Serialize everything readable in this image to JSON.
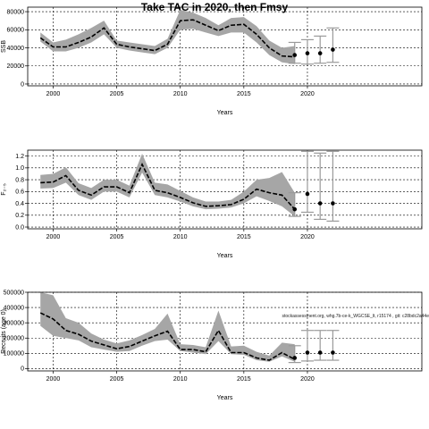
{
  "page": {
    "title": "Take TAC in 2020, then Fmsy"
  },
  "chart_data": [
    {
      "type": "line",
      "ylabel": "SSB",
      "xlabel": "Years",
      "xlim": [
        1998,
        2029
      ],
      "ylim": [
        -2000,
        85000
      ],
      "x_ticks": [
        2000,
        2005,
        2010,
        2015,
        2020
      ],
      "y_ticks": [
        0,
        20000,
        40000,
        60000,
        80000
      ],
      "y_tick_labels": [
        "0",
        "20000",
        "40000",
        "60000",
        "80000"
      ],
      "grid": true,
      "series": [
        {
          "x": [
            1999,
            2000,
            2001,
            2002,
            2003,
            2004,
            2005,
            2006,
            2007,
            2008,
            2009,
            2010,
            2011,
            2012,
            2013,
            2014,
            2015,
            2016,
            2017,
            2018,
            2019
          ],
          "values": [
            51000,
            41000,
            41000,
            46000,
            52000,
            62000,
            44000,
            41000,
            39000,
            37000,
            44000,
            70000,
            71000,
            65000,
            59000,
            65000,
            66000,
            55000,
            40000,
            31000,
            30000
          ],
          "lower": [
            47000,
            36000,
            36000,
            40000,
            46000,
            55000,
            40000,
            37000,
            35000,
            33000,
            40000,
            60000,
            61000,
            57000,
            53000,
            57000,
            57000,
            46000,
            32000,
            24000,
            22000
          ],
          "upper": [
            57000,
            46000,
            49000,
            55000,
            62000,
            70000,
            48000,
            46000,
            44000,
            42000,
            50000,
            82000,
            79000,
            73000,
            65000,
            73000,
            74000,
            64000,
            48000,
            40000,
            42000
          ]
        }
      ],
      "projections": [
        {
          "x": 2019,
          "value": 32000,
          "lower": 23000,
          "upper": 46000
        },
        {
          "x": 2020,
          "value": 34000,
          "lower": 22000,
          "upper": 49000
        },
        {
          "x": 2021,
          "value": 34000,
          "lower": 23000,
          "upper": 53000
        },
        {
          "x": 2022,
          "value": 38000,
          "lower": 24000,
          "upper": 62000
        }
      ]
    },
    {
      "type": "line",
      "ylabel": "F₂₋₅",
      "xlabel": "Years",
      "xlim": [
        1998,
        2029
      ],
      "ylim": [
        -0.03,
        1.3
      ],
      "x_ticks": [
        2000,
        2005,
        2010,
        2015,
        2020
      ],
      "y_ticks": [
        0,
        0.2,
        0.4,
        0.6,
        0.8,
        1.0,
        1.2
      ],
      "y_tick_labels": [
        "0.0",
        "0.2",
        "0.4",
        "0.6",
        "0.8",
        "1.0",
        "1.2"
      ],
      "grid": true,
      "series": [
        {
          "x": [
            1999,
            2000,
            2001,
            2002,
            2003,
            2004,
            2005,
            2006,
            2007,
            2008,
            2009,
            2010,
            2011,
            2012,
            2013,
            2014,
            2015,
            2016,
            2017,
            2018,
            2019
          ],
          "values": [
            0.75,
            0.76,
            0.87,
            0.62,
            0.54,
            0.68,
            0.68,
            0.58,
            1.06,
            0.62,
            0.58,
            0.5,
            0.41,
            0.35,
            0.36,
            0.38,
            0.47,
            0.64,
            0.58,
            0.54,
            0.3
          ],
          "lower": [
            0.65,
            0.66,
            0.75,
            0.54,
            0.46,
            0.6,
            0.6,
            0.5,
            0.92,
            0.54,
            0.5,
            0.43,
            0.35,
            0.3,
            0.31,
            0.33,
            0.4,
            0.52,
            0.44,
            0.35,
            0.18
          ],
          "upper": [
            0.88,
            0.9,
            1.01,
            0.74,
            0.66,
            0.8,
            0.8,
            0.7,
            1.24,
            0.75,
            0.72,
            0.61,
            0.5,
            0.43,
            0.43,
            0.46,
            0.6,
            0.8,
            0.83,
            0.93,
            0.58
          ]
        }
      ],
      "projections": [
        {
          "x": 2019,
          "value": 0.3,
          "lower": 0.18,
          "upper": 0.58
        },
        {
          "x": 2020,
          "value": 0.56,
          "lower": 0.25,
          "upper": 1.28
        },
        {
          "x": 2021,
          "value": 0.4,
          "lower": 0.13,
          "upper": 1.25
        },
        {
          "x": 2022,
          "value": 0.4,
          "lower": 0.1,
          "upper": 1.28
        }
      ]
    },
    {
      "type": "line",
      "ylabel": "Recruits (age 0)",
      "xlabel": "Years",
      "xlim": [
        1998,
        2029
      ],
      "ylim": [
        -15000,
        500000
      ],
      "x_ticks": [
        2000,
        2005,
        2010,
        2015,
        2020
      ],
      "y_ticks": [
        0,
        100000,
        200000,
        300000,
        400000,
        500000
      ],
      "y_tick_labels": [
        "0",
        "100000",
        "200000",
        "300000",
        "400000",
        "500000"
      ],
      "grid": true,
      "annotation": "stockassessment.org, whg.7b-ce-k_WGCSE_lt, r15174 , git: c28bdc2a44e",
      "series": [
        {
          "x": [
            1999,
            2000,
            2001,
            2002,
            2003,
            2004,
            2005,
            2006,
            2007,
            2008,
            2009,
            2010,
            2011,
            2012,
            2013,
            2014,
            2015,
            2016,
            2017,
            2018,
            2019
          ],
          "values": [
            365000,
            325000,
            250000,
            225000,
            180000,
            155000,
            130000,
            145000,
            180000,
            215000,
            245000,
            125000,
            125000,
            110000,
            250000,
            105000,
            105000,
            70000,
            55000,
            105000,
            60000
          ],
          "lower": [
            280000,
            215000,
            200000,
            185000,
            140000,
            125000,
            110000,
            115000,
            150000,
            180000,
            190000,
            115000,
            105000,
            95000,
            180000,
            95000,
            90000,
            55000,
            45000,
            80000,
            45000
          ],
          "upper": [
            500000,
            480000,
            330000,
            300000,
            230000,
            190000,
            165000,
            185000,
            220000,
            260000,
            360000,
            160000,
            155000,
            140000,
            380000,
            145000,
            150000,
            110000,
            85000,
            170000,
            160000
          ]
        }
      ],
      "projections": [
        {
          "x": 2019,
          "value": 70000,
          "lower": 40000,
          "upper": 150000
        },
        {
          "x": 2020,
          "value": 105000,
          "lower": 50000,
          "upper": 250000
        },
        {
          "x": 2021,
          "value": 105000,
          "lower": 55000,
          "upper": 250000
        },
        {
          "x": 2022,
          "value": 105000,
          "lower": 55000,
          "upper": 250000
        }
      ]
    }
  ]
}
